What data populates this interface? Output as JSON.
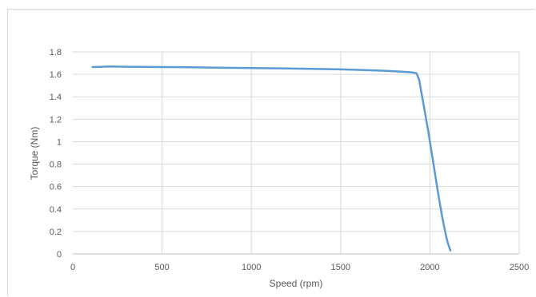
{
  "chart_data": {
    "type": "line",
    "title": "",
    "xlabel": "Speed (rpm)",
    "ylabel": "Torque (Nm)",
    "xlim": [
      0,
      2500
    ],
    "ylim": [
      0,
      1.8
    ],
    "x_ticks": [
      0,
      500,
      1000,
      1500,
      2000,
      2500
    ],
    "y_ticks": [
      0,
      0.2,
      0.4,
      0.6,
      0.8,
      1,
      1.2,
      1.4,
      1.6,
      1.8
    ],
    "grid": true,
    "legend": "none",
    "series": [
      {
        "color": "#5b9bd5",
        "x": [
          110,
          200,
          300,
          400,
          500,
          600,
          700,
          800,
          900,
          1000,
          1100,
          1200,
          1300,
          1400,
          1500,
          1600,
          1700,
          1800,
          1850,
          1900,
          1925,
          1940,
          1950,
          1960,
          1970,
          1980,
          1990,
          2000,
          2010,
          2020,
          2030,
          2040,
          2050,
          2060,
          2070,
          2080,
          2090,
          2100,
          2110,
          2115
        ],
        "y": [
          1.665,
          1.67,
          1.668,
          1.666,
          1.665,
          1.664,
          1.662,
          1.66,
          1.658,
          1.656,
          1.654,
          1.652,
          1.65,
          1.647,
          1.644,
          1.64,
          1.635,
          1.628,
          1.623,
          1.618,
          1.61,
          1.55,
          1.46,
          1.37,
          1.28,
          1.19,
          1.1,
          1.0,
          0.9,
          0.8,
          0.7,
          0.6,
          0.5,
          0.41,
          0.32,
          0.24,
          0.16,
          0.1,
          0.05,
          0.03
        ]
      }
    ]
  }
}
